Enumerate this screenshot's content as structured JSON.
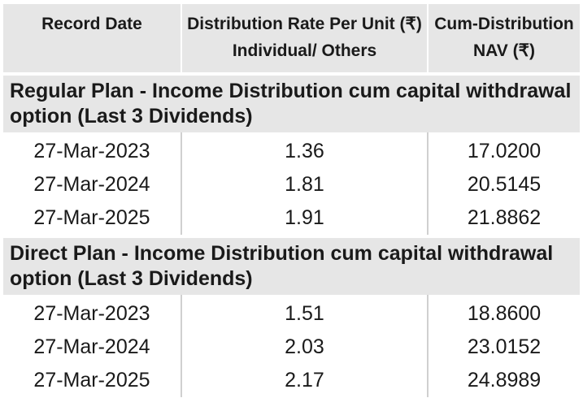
{
  "header": {
    "col1": "Record Date",
    "col2_line1": "Distribution Rate Per Unit  (₹)",
    "col2_line2": "Individual/ Others",
    "col3_line1": "Cum-Distribution",
    "col3_line2": "NAV (₹)"
  },
  "sections": [
    {
      "title": "Regular Plan - Income Distribution cum capital withdrawal option (Last 3 Dividends)",
      "rows": [
        {
          "date": "27-Mar-2023",
          "rate": "1.36",
          "nav": "17.0200"
        },
        {
          "date": "27-Mar-2024",
          "rate": "1.81",
          "nav": "20.5145"
        },
        {
          "date": "27-Mar-2025",
          "rate": "1.91",
          "nav": "21.8862"
        }
      ]
    },
    {
      "title": "Direct Plan - Income Distribution cum capital withdrawal option (Last 3 Dividends)",
      "rows": [
        {
          "date": "27-Mar-2023",
          "rate": "1.51",
          "nav": "18.8600"
        },
        {
          "date": "27-Mar-2024",
          "rate": "2.03",
          "nav": "23.0152"
        },
        {
          "date": "27-Mar-2025",
          "rate": "2.17",
          "nav": "24.8989"
        }
      ]
    }
  ]
}
